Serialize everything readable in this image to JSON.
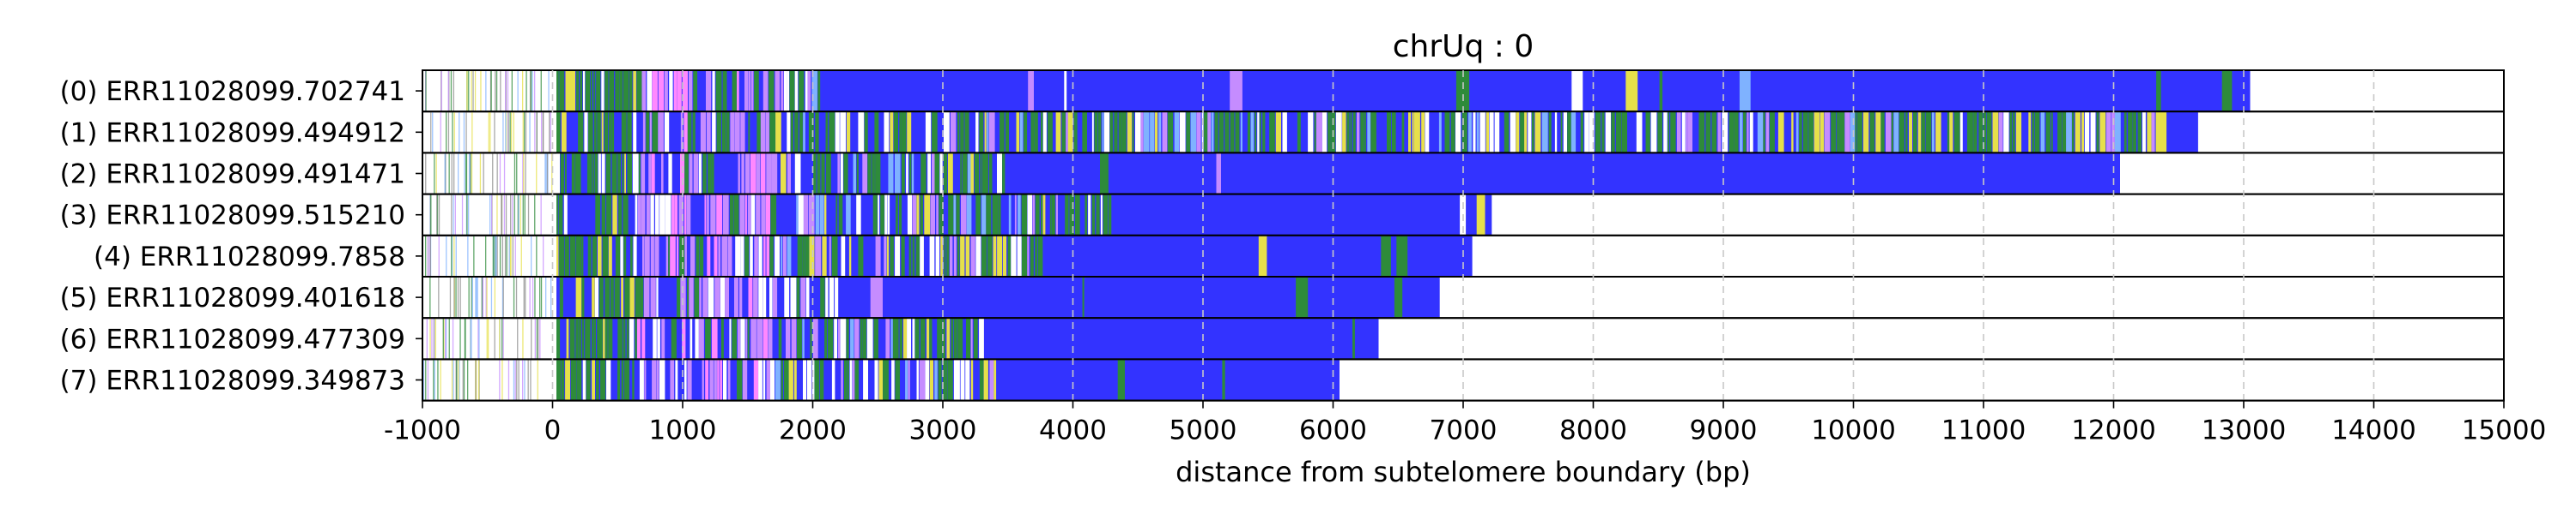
{
  "chart_data": {
    "type": "bar",
    "orientation": "horizontal",
    "title": "chrUq : 0",
    "xlabel": "distance from subtelomere boundary (bp)",
    "ylabel": "",
    "xlim": [
      -1000,
      15000
    ],
    "xticks": [
      -1000,
      0,
      1000,
      2000,
      3000,
      4000,
      5000,
      6000,
      7000,
      8000,
      9000,
      10000,
      11000,
      12000,
      13000,
      14000,
      15000
    ],
    "grid": "vertical dashed",
    "legend": "none",
    "categories": [
      "(0) ERR11028099.702741",
      "(1) ERR11028099.494912",
      "(2) ERR11028099.491471",
      "(3) ERR11028099.515210",
      "(4) ERR11028099.7858",
      "(5) ERR11028099.401618",
      "(6) ERR11028099.477309",
      "(7) ERR11028099.349873"
    ],
    "read_end_bp": [
      13050,
      12650,
      12050,
      7220,
      7070,
      6820,
      6350,
      6050
    ],
    "colors": {
      "blue_repeat": "#3333ff",
      "green_repeat": "#2e8b3a",
      "violet_repeat": "#c58cff",
      "yellow_repeat": "#e6e04a",
      "pink_repeat": "#ff88ff",
      "light_blue": "#7fb2ff",
      "mixed_white": "#ffffff",
      "grid": "#c8c8c8"
    }
  }
}
